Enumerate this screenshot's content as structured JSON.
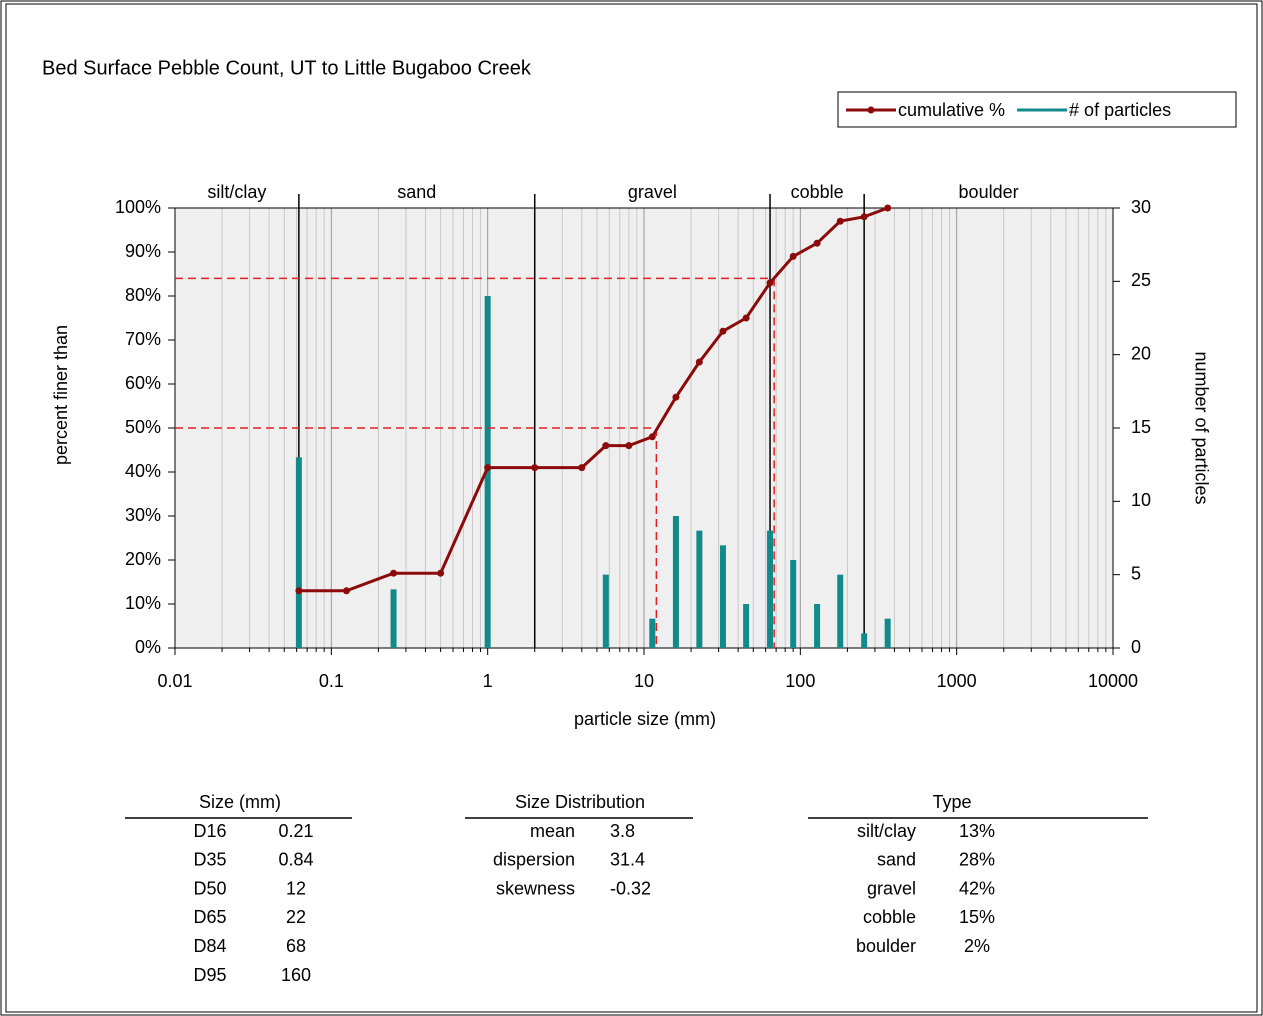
{
  "chart_data": {
    "type": "combo",
    "title": "Bed Surface Pebble Count,  UT to Little Bugaboo Creek",
    "x_label": "particle size (mm)",
    "y_label": "percent finer than",
    "y2_label": "number of particles",
    "xlim": [
      0.01,
      10000
    ],
    "xticks": [
      0.01,
      0.1,
      1,
      10,
      100,
      1000,
      10000
    ],
    "xscale": "log",
    "minor_grid": true,
    "ylim": [
      0,
      100
    ],
    "yticks": [
      {
        "value": 0,
        "label": "0%"
      },
      {
        "value": 10,
        "label": "10%"
      },
      {
        "value": 20,
        "label": "20%"
      },
      {
        "value": 30,
        "label": "30%"
      },
      {
        "value": 40,
        "label": "40%"
      },
      {
        "value": 50,
        "label": "50%"
      },
      {
        "value": 60,
        "label": "60%"
      },
      {
        "value": 70,
        "label": "70%"
      },
      {
        "value": 80,
        "label": "80%"
      },
      {
        "value": 90,
        "label": "90%"
      },
      {
        "value": 100,
        "label": "100%"
      }
    ],
    "y2lim": [
      0,
      30
    ],
    "y2ticks": [
      0,
      5,
      10,
      15,
      20,
      25,
      30
    ],
    "legend": "top-right",
    "class_names": [
      "silt/clay",
      "sand",
      "gravel",
      "cobble",
      "boulder"
    ],
    "class_bounds": [
      0.062,
      2,
      64,
      256
    ],
    "reference_lines": [
      {
        "x": 12,
        "y": 50
      },
      {
        "x": 68,
        "y": 84
      }
    ],
    "series": [
      {
        "name": "cumulative %",
        "type": "line",
        "color": "#8b0a0a",
        "x": [
          0.062,
          0.125,
          0.25,
          0.5,
          1,
          2,
          4,
          5.7,
          8,
          11.3,
          16,
          22.6,
          32,
          45,
          64,
          90,
          128,
          180,
          256,
          362
        ],
        "values": [
          13,
          13,
          17,
          17,
          41,
          41,
          41,
          46,
          46,
          48,
          57,
          65,
          72,
          75,
          83,
          89,
          92,
          97,
          98,
          100
        ]
      },
      {
        "name": "# of particles",
        "type": "bar",
        "axis": "y2",
        "color": "#138a8a",
        "x": [
          0.062,
          0.25,
          1,
          5.7,
          11.3,
          16,
          22.6,
          32,
          45,
          64,
          90,
          128,
          180,
          256,
          362
        ],
        "values": [
          13,
          4,
          24,
          5,
          2,
          9,
          8,
          7,
          3,
          8,
          6,
          3,
          5,
          1,
          2
        ]
      }
    ]
  },
  "tables": [
    {
      "title": "Size (mm)",
      "rows": [
        [
          "D16",
          "0.21"
        ],
        [
          "D35",
          "0.84"
        ],
        [
          "D50",
          "12"
        ],
        [
          "D65",
          "22"
        ],
        [
          "D84",
          "68"
        ],
        [
          "D95",
          "160"
        ]
      ]
    },
    {
      "title": "Size Distribution",
      "rows": [
        [
          "mean",
          "3.8"
        ],
        [
          "dispersion",
          "31.4"
        ],
        [
          "skewness",
          "-0.32"
        ]
      ]
    },
    {
      "title": "Type",
      "rows": [
        [
          "silt/clay",
          "13%"
        ],
        [
          "sand",
          "28%"
        ],
        [
          "gravel",
          "42%"
        ],
        [
          "cobble",
          "15%"
        ],
        [
          "boulder",
          "2%"
        ]
      ]
    }
  ]
}
